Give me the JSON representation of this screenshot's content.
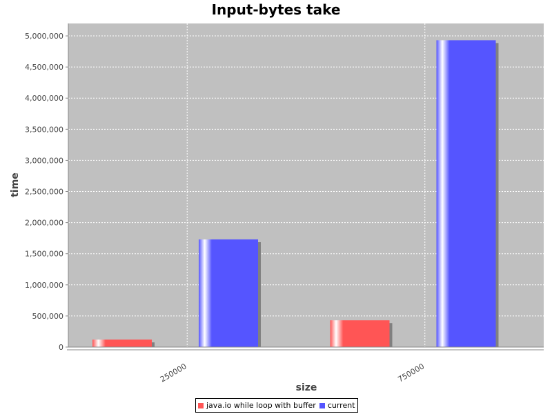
{
  "chart_data": {
    "type": "bar",
    "title": "Input-bytes take",
    "xlabel": "size",
    "ylabel": "time",
    "categories": [
      "250000",
      "750000"
    ],
    "series": [
      {
        "name": "java.io while loop with buffer",
        "color": "#ff5555",
        "values": [
          120000,
          430000
        ]
      },
      {
        "name": "current",
        "color": "#5555ff",
        "values": [
          1730000,
          4930000
        ]
      }
    ],
    "ylim": [
      0,
      5200000
    ],
    "yticks": [
      0,
      500000,
      1000000,
      1500000,
      2000000,
      2500000,
      3000000,
      3500000,
      4000000,
      4500000,
      5000000
    ],
    "ytick_labels": [
      "0",
      "500,000",
      "1,000,000",
      "1,500,000",
      "2,000,000",
      "2,500,000",
      "3,000,000",
      "3,500,000",
      "4,000,000",
      "4,500,000",
      "5,000,000"
    ],
    "grid": true,
    "legend_position": "bottom-center",
    "plot_background": "#c0c0c0"
  }
}
